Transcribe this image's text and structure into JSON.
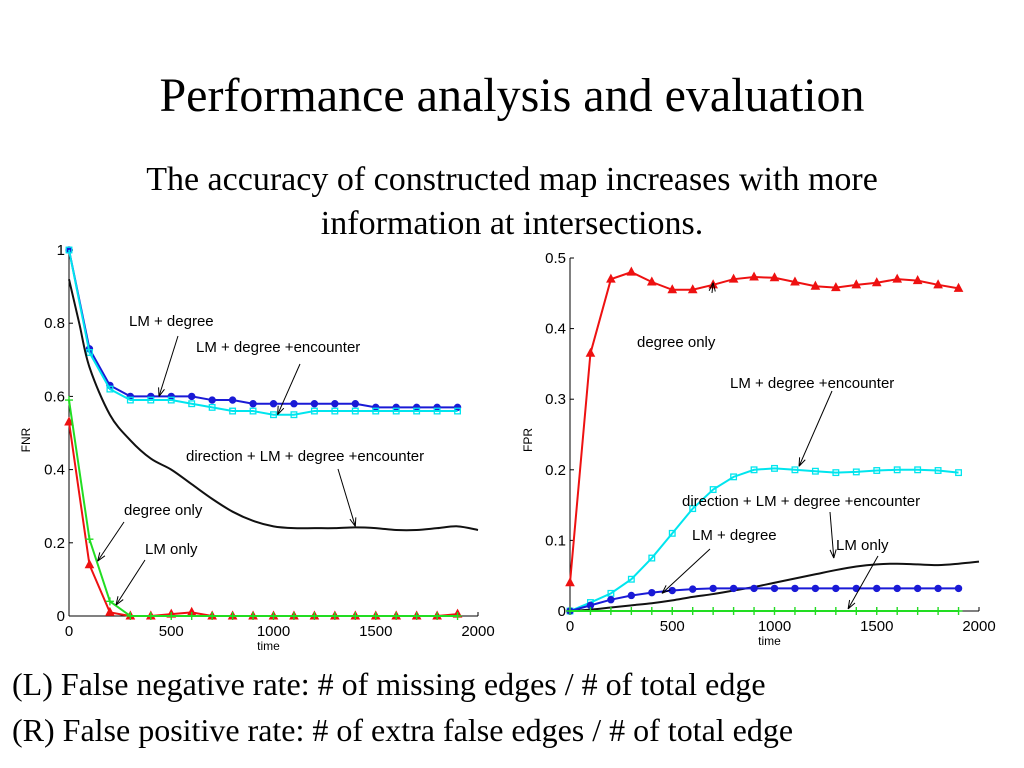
{
  "slide": {
    "title": "Performance analysis and evaluation",
    "subtitle": "The accuracy of constructed map increases with more information at intersections.",
    "captions": [
      "(L) False negative rate: # of missing edges / # of total edge",
      "(R) False positive rate: # of extra false edges / # of total edge"
    ]
  },
  "chart_data": [
    {
      "type": "line",
      "xlabel": "time",
      "ylabel": "FNR",
      "xlim": [
        0,
        2000
      ],
      "ylim": [
        0,
        1
      ],
      "xticks": [
        0,
        500,
        1000,
        1500,
        2000
      ],
      "yticks": [
        0,
        0.2,
        0.4,
        0.6,
        0.8,
        1
      ],
      "ytick_labels": [
        "0",
        "0.2",
        "0.4",
        "0.6",
        "0.8",
        "1"
      ],
      "series": [
        {
          "name": "LM + degree",
          "color": "#1a1ad6",
          "marker": "circle",
          "x": [
            0,
            100,
            200,
            300,
            400,
            500,
            600,
            700,
            800,
            900,
            1000,
            1100,
            1200,
            1300,
            1400,
            1500,
            1600,
            1700,
            1800,
            1900
          ],
          "y": [
            1.0,
            0.73,
            0.63,
            0.6,
            0.6,
            0.6,
            0.6,
            0.59,
            0.59,
            0.58,
            0.58,
            0.58,
            0.58,
            0.58,
            0.58,
            0.57,
            0.57,
            0.57,
            0.57,
            0.57
          ]
        },
        {
          "name": "LM + degree +encounter",
          "color": "#00e5ee",
          "marker": "square",
          "x": [
            0,
            100,
            200,
            300,
            400,
            500,
            600,
            700,
            800,
            900,
            1000,
            1100,
            1200,
            1300,
            1400,
            1500,
            1600,
            1700,
            1800,
            1900
          ],
          "y": [
            1.0,
            0.72,
            0.62,
            0.59,
            0.59,
            0.59,
            0.58,
            0.57,
            0.56,
            0.56,
            0.55,
            0.55,
            0.56,
            0.56,
            0.56,
            0.56,
            0.56,
            0.56,
            0.56,
            0.56
          ]
        },
        {
          "name": "direction + LM + degree +encounter",
          "color": "#111111",
          "marker": "none",
          "x": [
            0,
            50,
            100,
            200,
            300,
            400,
            500,
            600,
            700,
            800,
            900,
            1000,
            1100,
            1200,
            1300,
            1400,
            1500,
            1600,
            1700,
            1800,
            1900,
            2000
          ],
          "y": [
            0.92,
            0.8,
            0.68,
            0.55,
            0.48,
            0.43,
            0.4,
            0.36,
            0.32,
            0.285,
            0.26,
            0.245,
            0.24,
            0.24,
            0.24,
            0.242,
            0.24,
            0.235,
            0.235,
            0.24,
            0.245,
            0.235
          ]
        },
        {
          "name": "degree only",
          "color": "#ee1111",
          "marker": "triangle",
          "x": [
            0,
            100,
            200,
            300,
            400,
            500,
            600,
            700,
            800,
            900,
            1000,
            1100,
            1200,
            1300,
            1400,
            1500,
            1600,
            1700,
            1800,
            1900
          ],
          "y": [
            0.53,
            0.14,
            0.01,
            0.0,
            0.0,
            0.005,
            0.01,
            0.0,
            0.0,
            0.0,
            0.0,
            0.0,
            0.0,
            0.0,
            0.0,
            0.0,
            0.0,
            0.0,
            0.0,
            0.005
          ]
        },
        {
          "name": "LM only",
          "color": "#22dd22",
          "marker": "plus",
          "x": [
            0,
            100,
            200,
            300,
            400,
            500,
            600,
            700,
            800,
            900,
            1000,
            1100,
            1200,
            1300,
            1400,
            1500,
            1600,
            1700,
            1800,
            1900
          ],
          "y": [
            0.59,
            0.21,
            0.04,
            0.0,
            0.0,
            0.0,
            0.0,
            0.0,
            0.0,
            0.0,
            0.0,
            0.0,
            0.0,
            0.0,
            0.0,
            0.0,
            0.0,
            0.0,
            0.0,
            0.0
          ]
        }
      ],
      "annotations": [
        "LM + degree",
        "LM + degree +encounter",
        "direction + LM + degree +encounter",
        "degree only",
        "LM only"
      ]
    },
    {
      "type": "line",
      "xlabel": "time",
      "ylabel": "FPR",
      "xlim": [
        0,
        2000
      ],
      "ylim": [
        0,
        0.5
      ],
      "xticks": [
        0,
        500,
        1000,
        1500,
        2000
      ],
      "yticks": [
        0,
        0.1,
        0.2,
        0.3,
        0.4,
        0.5
      ],
      "ytick_labels": [
        "0",
        "0.1",
        "0.2",
        "0.3",
        "0.4",
        "0.5"
      ],
      "series": [
        {
          "name": "degree only",
          "color": "#ee1111",
          "marker": "triangle",
          "x": [
            0,
            100,
            200,
            300,
            400,
            500,
            600,
            700,
            800,
            900,
            1000,
            1100,
            1200,
            1300,
            1400,
            1500,
            1600,
            1700,
            1800,
            1900
          ],
          "y": [
            0.04,
            0.365,
            0.47,
            0.48,
            0.466,
            0.455,
            0.455,
            0.462,
            0.47,
            0.473,
            0.472,
            0.466,
            0.46,
            0.458,
            0.462,
            0.465,
            0.47,
            0.468,
            0.462,
            0.457
          ]
        },
        {
          "name": "LM + degree +encounter",
          "color": "#00e5ee",
          "marker": "square",
          "x": [
            0,
            100,
            200,
            300,
            400,
            500,
            600,
            700,
            800,
            900,
            1000,
            1100,
            1200,
            1300,
            1400,
            1500,
            1600,
            1700,
            1800,
            1900
          ],
          "y": [
            0.0,
            0.012,
            0.025,
            0.045,
            0.075,
            0.11,
            0.145,
            0.172,
            0.19,
            0.2,
            0.202,
            0.2,
            0.198,
            0.196,
            0.197,
            0.199,
            0.2,
            0.2,
            0.199,
            0.196
          ]
        },
        {
          "name": "direction + LM + degree +encounter",
          "color": "#111111",
          "marker": "none",
          "x": [
            0,
            100,
            200,
            300,
            400,
            500,
            600,
            700,
            800,
            900,
            1000,
            1100,
            1200,
            1300,
            1400,
            1500,
            1600,
            1700,
            1800,
            1900,
            2000
          ],
          "y": [
            0.0,
            0.002,
            0.005,
            0.008,
            0.011,
            0.015,
            0.02,
            0.024,
            0.029,
            0.034,
            0.04,
            0.046,
            0.052,
            0.058,
            0.063,
            0.066,
            0.067,
            0.066,
            0.065,
            0.067,
            0.07
          ]
        },
        {
          "name": "LM + degree",
          "color": "#1a1ad6",
          "marker": "circle",
          "x": [
            0,
            100,
            200,
            300,
            400,
            500,
            600,
            700,
            800,
            900,
            1000,
            1100,
            1200,
            1300,
            1400,
            1500,
            1600,
            1700,
            1800,
            1900
          ],
          "y": [
            0.0,
            0.008,
            0.016,
            0.022,
            0.026,
            0.029,
            0.031,
            0.032,
            0.032,
            0.032,
            0.032,
            0.032,
            0.032,
            0.032,
            0.032,
            0.032,
            0.032,
            0.032,
            0.032,
            0.032
          ]
        },
        {
          "name": "LM only",
          "color": "#22dd22",
          "marker": "plus",
          "x": [
            0,
            100,
            200,
            300,
            400,
            500,
            600,
            700,
            800,
            900,
            1000,
            1100,
            1200,
            1300,
            1400,
            1500,
            1600,
            1700,
            1800,
            1900
          ],
          "y": [
            0,
            0,
            0,
            0,
            0,
            0,
            0,
            0,
            0,
            0,
            0,
            0,
            0,
            0,
            0,
            0,
            0,
            0,
            0,
            0
          ]
        }
      ],
      "annotations": [
        "degree only",
        "LM + degree +encounter",
        "direction + LM + degree +encounter",
        "LM + degree",
        "LM only"
      ]
    }
  ]
}
